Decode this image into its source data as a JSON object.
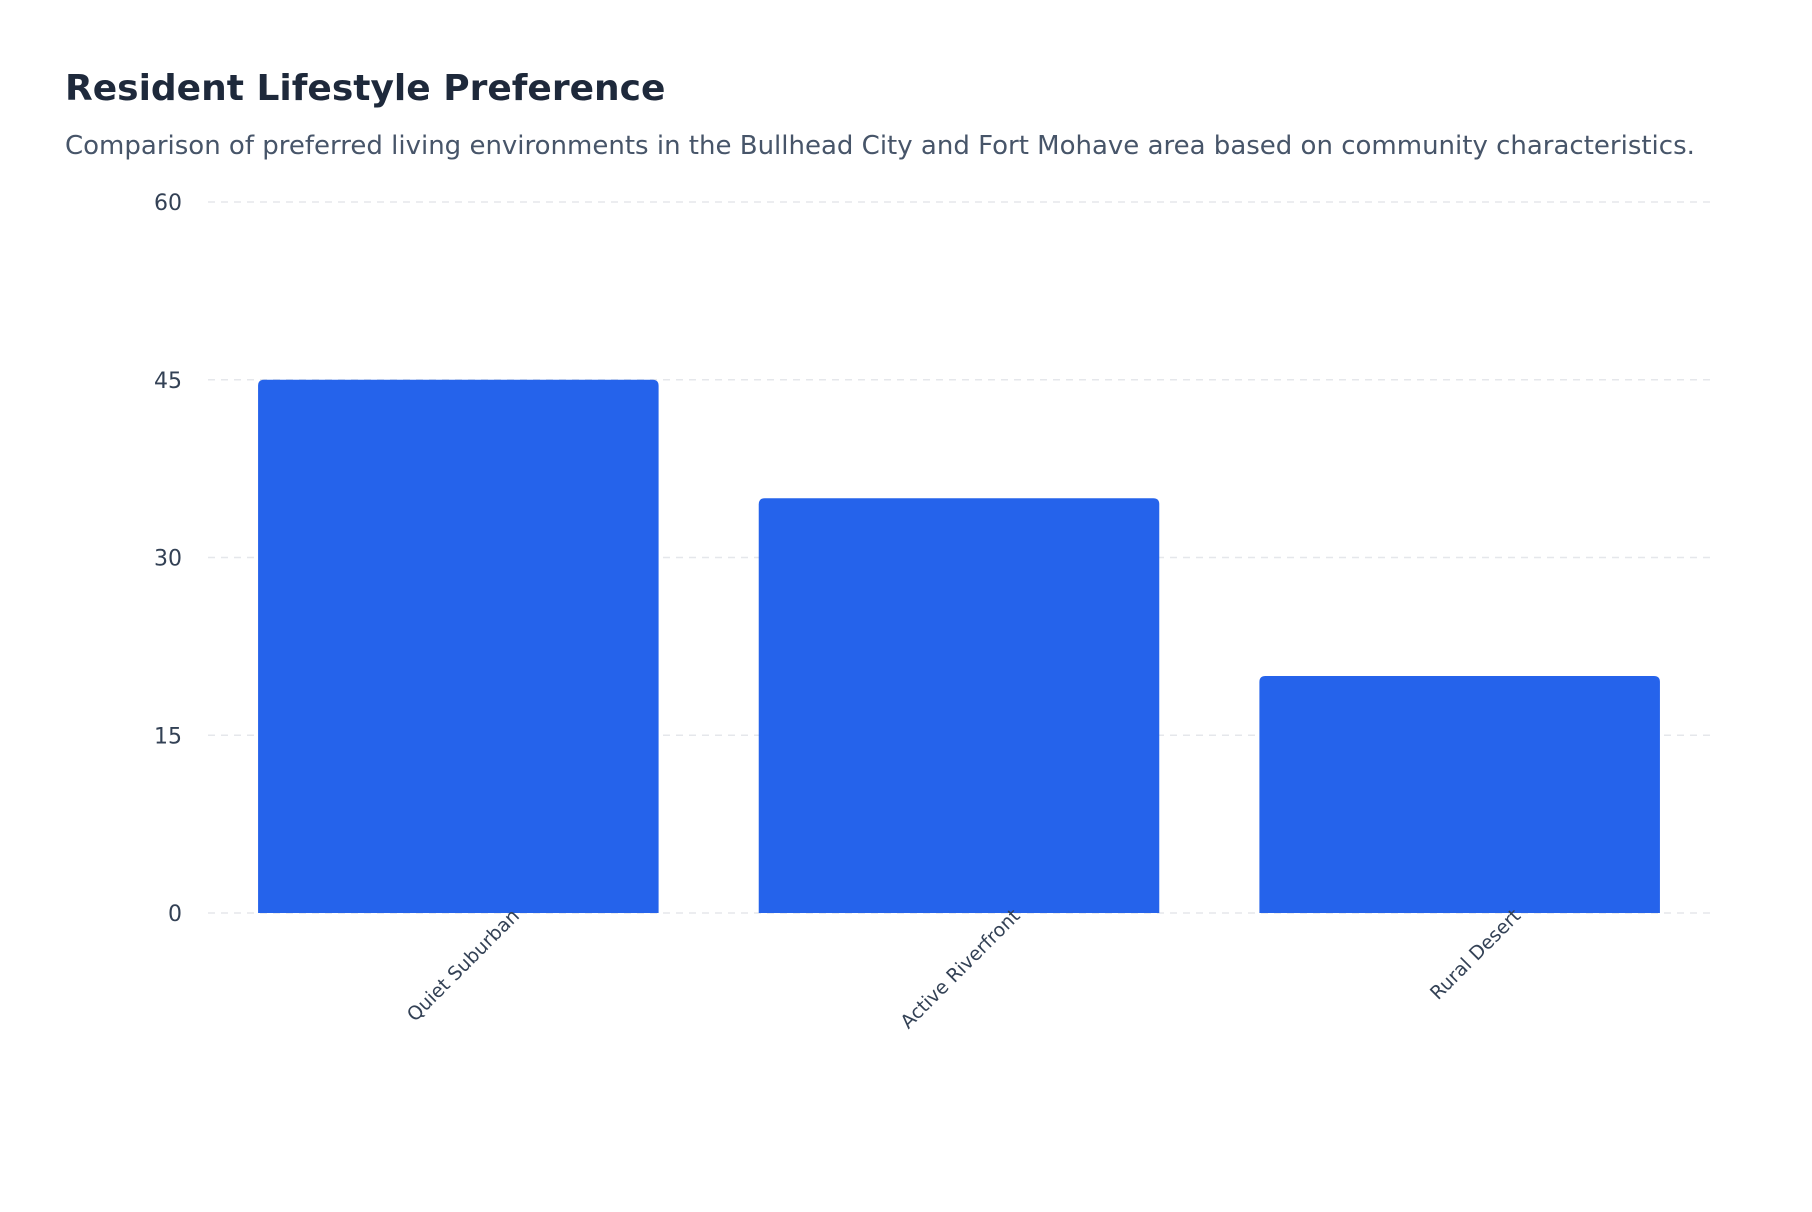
{
  "chart_data": {
    "type": "bar",
    "title": "Resident Lifestyle Preference",
    "subtitle": "Comparison of preferred living environments in the Bullhead City and Fort Mohave area based on community characteristics.",
    "categories": [
      "Quiet Suburban",
      "Active Riverfront",
      "Rural Desert"
    ],
    "values": [
      45,
      35,
      20
    ],
    "ylim": [
      0,
      60
    ],
    "yticks": [
      0,
      15,
      30,
      45,
      60
    ],
    "xlabel": "",
    "ylabel": "",
    "grid": true,
    "legend": "none",
    "bar_color": "#2563eb",
    "grid_color": "#e5e7eb",
    "tick_color": "#334155"
  }
}
